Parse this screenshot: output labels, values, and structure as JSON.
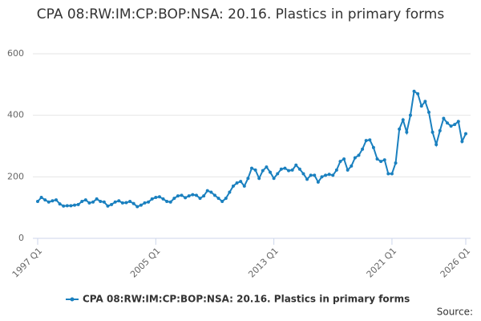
{
  "chart_data": {
    "type": "line",
    "title": "CPA 08:RW:IM:CP:BOP:NSA: 20.16. Plastics in primary forms",
    "source": "Source:",
    "categories": [
      "1997 Q1",
      null,
      null,
      null,
      null,
      null,
      null,
      null,
      null,
      null,
      null,
      null,
      null,
      null,
      null,
      null,
      null,
      null,
      null,
      null,
      null,
      null,
      null,
      null,
      null,
      null,
      null,
      null,
      null,
      null,
      null,
      null,
      "2005 Q1",
      null,
      null,
      null,
      null,
      null,
      null,
      null,
      null,
      null,
      null,
      null,
      null,
      null,
      null,
      null,
      null,
      null,
      null,
      null,
      null,
      null,
      null,
      null,
      null,
      null,
      null,
      null,
      null,
      null,
      null,
      null,
      "2013 Q1",
      null,
      null,
      null,
      null,
      null,
      null,
      null,
      null,
      null,
      null,
      null,
      null,
      null,
      null,
      null,
      null,
      null,
      null,
      null,
      null,
      null,
      null,
      null,
      null,
      null,
      null,
      null,
      null,
      null,
      null,
      null,
      "2021 Q1",
      null,
      null,
      null,
      null,
      null,
      null,
      null,
      null,
      null,
      null,
      null,
      null,
      null,
      null,
      null,
      null,
      null,
      null,
      null,
      "2026 Q1"
    ],
    "series": [
      {
        "name": "CPA 08:RW:IM:CP:BOP:NSA: 20.16. Plastics in primary forms",
        "color": "#1a80bf",
        "values": [
          120,
          133,
          125,
          118,
          122,
          125,
          112,
          105,
          106,
          106,
          108,
          110,
          120,
          125,
          115,
          118,
          128,
          120,
          118,
          105,
          110,
          118,
          122,
          115,
          116,
          120,
          113,
          103,
          108,
          115,
          118,
          128,
          133,
          135,
          128,
          120,
          118,
          130,
          138,
          140,
          132,
          138,
          142,
          140,
          130,
          138,
          155,
          150,
          140,
          130,
          120,
          130,
          150,
          170,
          180,
          185,
          170,
          195,
          228,
          222,
          195,
          220,
          232,
          215,
          195,
          210,
          225,
          228,
          220,
          222,
          238,
          225,
          210,
          192,
          205,
          205,
          183,
          200,
          205,
          208,
          205,
          222,
          250,
          258,
          222,
          235,
          262,
          270,
          290,
          318,
          320,
          295,
          258,
          250,
          255,
          210,
          210,
          245,
          355,
          385,
          345,
          400,
          478,
          470,
          430,
          445,
          410,
          345,
          305,
          350,
          390,
          375,
          365,
          370,
          380,
          315,
          340
        ]
      }
    ],
    "ylim": [
      0,
      600
    ],
    "yticks": [
      0,
      200,
      400,
      600
    ],
    "grid": true
  }
}
